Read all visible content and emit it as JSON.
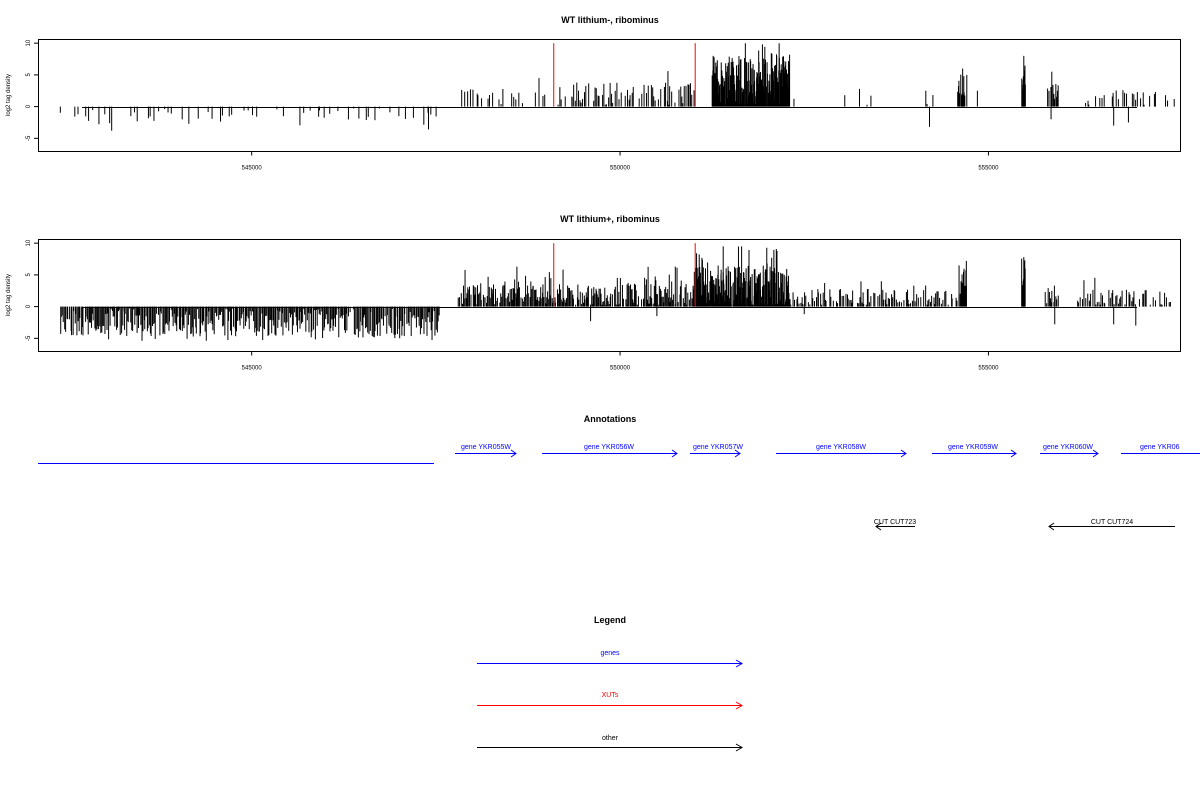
{
  "colors": {
    "genes": "#0000ff",
    "xuts": "#ff0000",
    "other": "#000000",
    "signal": "#000000",
    "marker": "#ff0000"
  },
  "chart_data": [
    {
      "type": "bar",
      "title": "WT lithium-, ribominus",
      "ylabel": "log2 tag density",
      "xlim": [
        542100,
        557600
      ],
      "ylim": [
        -7,
        10.5
      ],
      "yticks": [
        -5,
        0,
        5,
        10
      ],
      "xticks": [
        545000,
        550000,
        555000
      ],
      "xtick_labels": [
        "545000",
        "550000",
        "555000"
      ],
      "markers": [
        549100,
        551020
      ],
      "series": [
        {
          "region": [
            542400,
            547500
          ],
          "dir": -1,
          "step": 55,
          "base": 1.6,
          "var": 1.4,
          "spike": 1.5,
          "density": 0.55
        },
        {
          "region": [
            547800,
            549150
          ],
          "dir": 1,
          "step": 30,
          "base": 1.6,
          "var": 1.2,
          "spike": 2.8,
          "density": 0.55
        },
        {
          "region": [
            549150,
            551000
          ],
          "dir": 1,
          "step": 20,
          "base": 2.0,
          "var": 1.8,
          "spike": 4.0,
          "density": 0.75
        },
        {
          "region": [
            551250,
            552300
          ],
          "dir": 1,
          "step": 6,
          "base": 4.0,
          "var": 4.0,
          "spike": 10,
          "density": 0.95
        },
        {
          "region": [
            552300,
            554300
          ],
          "dir": 1,
          "step": 120,
          "base": 1.0,
          "var": 1.2,
          "spike": 1.5,
          "density": 0.35
        },
        {
          "region": [
            554580,
            554700
          ],
          "dir": 1,
          "step": 8,
          "base": 3.5,
          "var": 2.0,
          "spike": 6.0,
          "density": 0.9
        },
        {
          "region": [
            555450,
            555500
          ],
          "dir": 1,
          "step": 6,
          "base": 5.0,
          "var": 2.5,
          "spike": 8.0,
          "density": 1
        },
        {
          "region": [
            555800,
            555950
          ],
          "dir": 1,
          "step": 10,
          "base": 2.5,
          "var": 1.5,
          "spike": 5.0,
          "density": 0.85
        },
        {
          "region": [
            556300,
            557500
          ],
          "dir": 1,
          "step": 30,
          "base": 1.5,
          "var": 1.3,
          "spike": 3.5,
          "density": 0.6
        }
      ],
      "values": [
        [
          554200,
          -3.2
        ],
        [
          556700,
          -3.0
        ],
        [
          556900,
          -2.5
        ],
        [
          555850,
          -2.0
        ],
        [
          543100,
          -3.8
        ],
        [
          547400,
          -3.6
        ],
        [
          548900,
          4.5
        ],
        [
          550650,
          5.6
        ],
        [
          554650,
          6.0
        ],
        [
          555480,
          8.0
        ],
        [
          555860,
          5.5
        ],
        [
          553050,
          1.8
        ],
        [
          553250,
          2.8
        ],
        [
          554150,
          2.5
        ],
        [
          554850,
          2.5
        ]
      ]
    },
    {
      "type": "bar",
      "title": "WT lithium+, ribominus",
      "ylabel": "log2 tag density",
      "xlim": [
        542100,
        557600
      ],
      "ylim": [
        -7,
        10.5
      ],
      "yticks": [
        -5,
        0,
        5,
        10
      ],
      "xticks": [
        545000,
        550000,
        555000
      ],
      "xtick_labels": [
        "545000",
        "550000",
        "555000"
      ],
      "markers": [
        549100,
        551020
      ],
      "series": [
        {
          "region": [
            542400,
            547550
          ],
          "dir": -1,
          "step": 14,
          "base": 2.5,
          "var": 2.2,
          "spike": 5.5,
          "density": 0.95
        },
        {
          "region": [
            547800,
            549150
          ],
          "dir": 1,
          "step": 12,
          "base": 1.8,
          "var": 1.6,
          "spike": 6.0,
          "density": 0.9
        },
        {
          "region": [
            549150,
            551000
          ],
          "dir": 1,
          "step": 12,
          "base": 1.8,
          "var": 1.8,
          "spike": 6.5,
          "density": 0.9
        },
        {
          "region": [
            551000,
            552300
          ],
          "dir": 1,
          "step": 6,
          "base": 3.0,
          "var": 3.5,
          "spike": 9.5,
          "density": 0.95
        },
        {
          "region": [
            552300,
            554600
          ],
          "dir": 1,
          "step": 15,
          "base": 1.5,
          "var": 1.3,
          "spike": 4.0,
          "density": 0.75
        },
        {
          "region": [
            554600,
            554700
          ],
          "dir": 1,
          "step": 8,
          "base": 4.0,
          "var": 2.0,
          "spike": 7.0,
          "density": 0.9
        },
        {
          "region": [
            555450,
            555500
          ],
          "dir": 1,
          "step": 6,
          "base": 5.0,
          "var": 2.5,
          "spike": 7.8,
          "density": 1
        },
        {
          "region": [
            555750,
            555950
          ],
          "dir": 1,
          "step": 12,
          "base": 2.0,
          "var": 1.5,
          "spike": 4.0,
          "density": 0.8
        },
        {
          "region": [
            556200,
            557500
          ],
          "dir": 1,
          "step": 18,
          "base": 1.5,
          "var": 1.4,
          "spike": 5.0,
          "density": 0.75
        }
      ],
      "values": [
        [
          549600,
          -2.3
        ],
        [
          555900,
          -2.8
        ],
        [
          556700,
          -2.8
        ],
        [
          557000,
          -3.0
        ],
        [
          550500,
          -1.5
        ],
        [
          552500,
          -1.2
        ],
        [
          548600,
          6.3
        ],
        [
          550750,
          6.3
        ],
        [
          551400,
          9.5
        ],
        [
          551650,
          9.5
        ],
        [
          555480,
          7.8
        ],
        [
          554700,
          7.2
        ]
      ]
    }
  ],
  "annotations": {
    "title": "Annotations",
    "genes": [
      {
        "label": "gene YKR055W"
      },
      {
        "label": "gene YKR056W"
      },
      {
        "label": "gene YKR057W"
      },
      {
        "label": "gene YKR058W"
      },
      {
        "label": "gene YKR059W"
      },
      {
        "label": "gene YKR060W"
      },
      {
        "label": "gene YKR06"
      }
    ],
    "cuts": [
      {
        "label": "CUT CUT723"
      },
      {
        "label": "CUT CUT724"
      }
    ]
  },
  "legend": {
    "title": "Legend",
    "items": [
      {
        "label": "genes",
        "color": "#0000ff"
      },
      {
        "label": "XUTs",
        "color": "#ff0000"
      },
      {
        "label": "other",
        "color": "#000000"
      }
    ]
  }
}
